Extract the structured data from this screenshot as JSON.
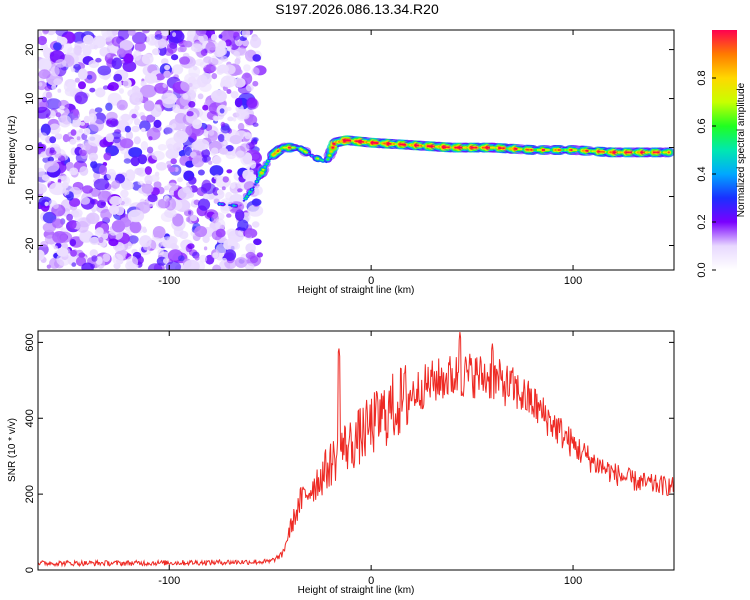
{
  "figure_title": "S197.2026.086.13.34.R20",
  "chart_data": [
    {
      "type": "heatmap",
      "title": "S197.2026.086.13.34.R20",
      "xlabel": "Height of straight line (km)",
      "ylabel": "Frequency (Hz)",
      "xlim": [
        -165,
        150
      ],
      "ylim": [
        -25,
        24
      ],
      "x_ticks": [
        -100,
        0,
        100
      ],
      "y_ticks": [
        -20,
        -10,
        0,
        10,
        20
      ],
      "noise_region_x": [
        -165,
        -55
      ],
      "ridge": {
        "x": [
          -75,
          -65,
          -58,
          -50,
          -44,
          -36,
          -28,
          -22,
          -18,
          -12,
          0,
          20,
          40,
          60,
          80,
          100,
          120,
          148
        ],
        "freq_hz": [
          -11.5,
          -12,
          -8,
          -2,
          0,
          0,
          -2,
          -3,
          1,
          1.5,
          1,
          0.5,
          0,
          0,
          -0.5,
          -0.5,
          -1,
          -1
        ],
        "amplitude": [
          0.25,
          0.2,
          0.45,
          0.6,
          0.8,
          0.6,
          0.4,
          0.5,
          0.9,
          0.95,
          0.9,
          0.85,
          0.9,
          0.85,
          0.75,
          0.7,
          0.85,
          0.8
        ]
      },
      "colorbar": {
        "label": "Normalized spectral amplitude",
        "range": [
          0,
          1
        ],
        "ticks": [
          0.0,
          0.2,
          0.4,
          0.6,
          0.8
        ],
        "tick_labels": [
          "0.0",
          "0.2",
          "0.4",
          "0.6",
          "0.8"
        ]
      }
    },
    {
      "type": "line",
      "xlabel": "Height of straight line (km)",
      "ylabel": "SNR (10 * v/v)",
      "xlim": [
        -165,
        150
      ],
      "ylim": [
        0,
        630
      ],
      "x_ticks": [
        -100,
        0,
        100
      ],
      "y_ticks": [
        0,
        200,
        400,
        600
      ],
      "series": [
        {
          "name": "SNR",
          "color": "#ee2a24",
          "x": [
            -165,
            -120,
            -80,
            -50,
            -44,
            -40,
            -35,
            -30,
            -25,
            -20,
            -17,
            -15,
            -10,
            -5,
            0,
            10,
            20,
            30,
            40,
            50,
            60,
            70,
            80,
            90,
            100,
            110,
            120,
            130,
            140,
            150
          ],
          "y": [
            18,
            18,
            20,
            22,
            40,
            110,
            180,
            215,
            245,
            280,
            300,
            320,
            330,
            355,
            380,
            425,
            465,
            495,
            510,
            515,
            505,
            480,
            440,
            385,
            330,
            285,
            255,
            235,
            225,
            220
          ]
        }
      ],
      "spikes": [
        {
          "x": -16,
          "y": 590
        },
        {
          "x": 44,
          "y": 630
        },
        {
          "x": 60,
          "y": 600
        }
      ]
    }
  ]
}
